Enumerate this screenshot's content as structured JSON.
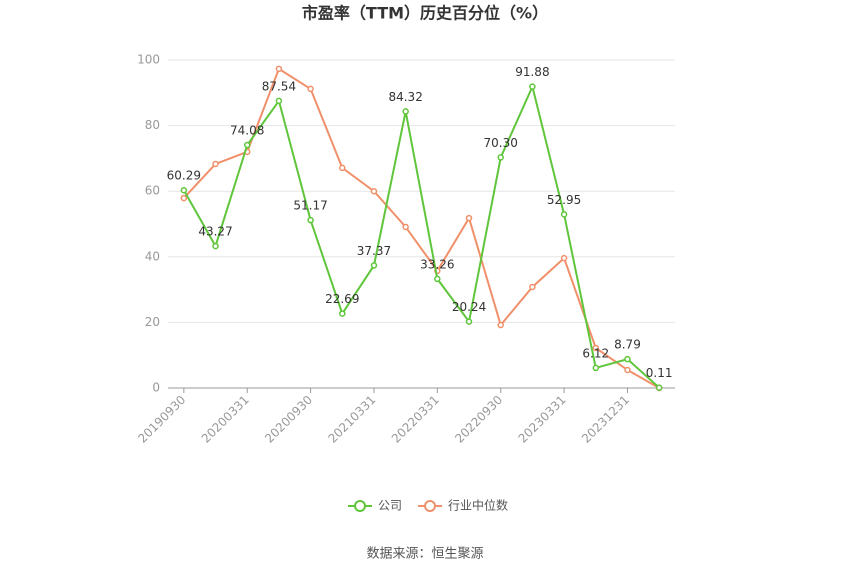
{
  "chart_data": {
    "type": "line",
    "title": "市盈率（TTM）历史百分位（%）",
    "source": "数据来源：恒生聚源",
    "categories": [
      "20190930",
      null,
      "20200331",
      null,
      "20200930",
      null,
      "20210331",
      null,
      "20220331",
      null,
      "20220930",
      null,
      "20230331",
      null,
      "20231231",
      null
    ],
    "series": [
      {
        "name": "公司",
        "color": "#5fc63b",
        "values": [
          60.29,
          43.27,
          74.08,
          87.54,
          51.17,
          22.69,
          37.37,
          84.32,
          33.26,
          20.24,
          70.3,
          91.88,
          52.95,
          6.12,
          8.79,
          0.11
        ],
        "value_labels": [
          "60.29",
          "43.27",
          "74.08",
          "87.54",
          "51.17",
          "22.69",
          "37.37",
          "84.32",
          "33.26",
          "20.24",
          "70.30",
          "91.88",
          "52.95",
          "6.12",
          "8.79",
          "0.11"
        ]
      },
      {
        "name": "行业中位数",
        "color": "#f0906a",
        "values": [
          57.9,
          68.3,
          72.0,
          97.3,
          91.2,
          67.1,
          60.0,
          49.1,
          35.7,
          51.8,
          19.2,
          30.8,
          39.6,
          12.2,
          5.5,
          0
        ]
      }
    ],
    "ylim": [
      0,
      100
    ],
    "yticks": [
      0,
      20,
      40,
      60,
      80,
      100
    ],
    "grid": true
  }
}
